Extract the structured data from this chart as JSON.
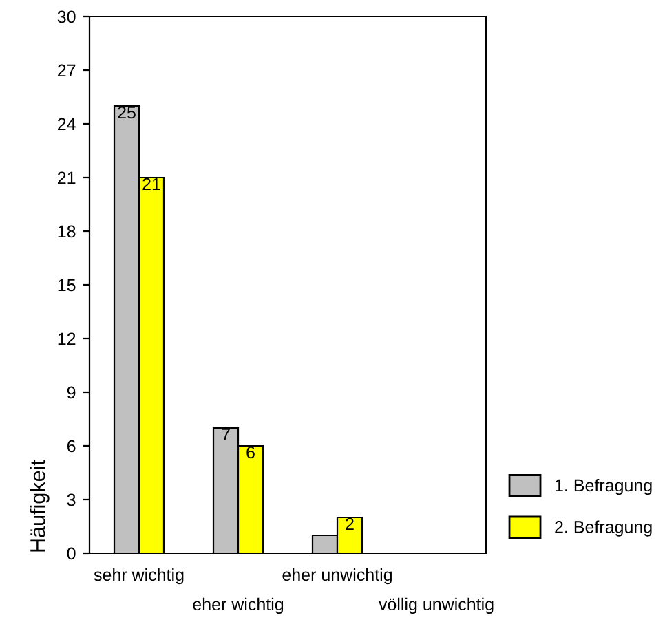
{
  "chart_data": {
    "type": "bar",
    "ylabel": "Häufigkeit",
    "categories": [
      "sehr wichtig",
      "eher wichtig",
      "eher unwichtig",
      "völlig unwichtig"
    ],
    "series": [
      {
        "name": "1. Befragung",
        "color": "#c0c0c0",
        "values": [
          25,
          7,
          1,
          null
        ],
        "value_labels": [
          "25",
          "7",
          null,
          null
        ]
      },
      {
        "name": "2. Befragung",
        "color": "#ffff00",
        "values": [
          21,
          6,
          2,
          null
        ],
        "value_labels": [
          "21",
          "6",
          "2",
          null
        ]
      }
    ],
    "ylim": [
      0,
      30
    ],
    "yticks": [
      0,
      3,
      6,
      9,
      12,
      15,
      18,
      21,
      24,
      27,
      30
    ],
    "grid": false,
    "legend": "right"
  }
}
